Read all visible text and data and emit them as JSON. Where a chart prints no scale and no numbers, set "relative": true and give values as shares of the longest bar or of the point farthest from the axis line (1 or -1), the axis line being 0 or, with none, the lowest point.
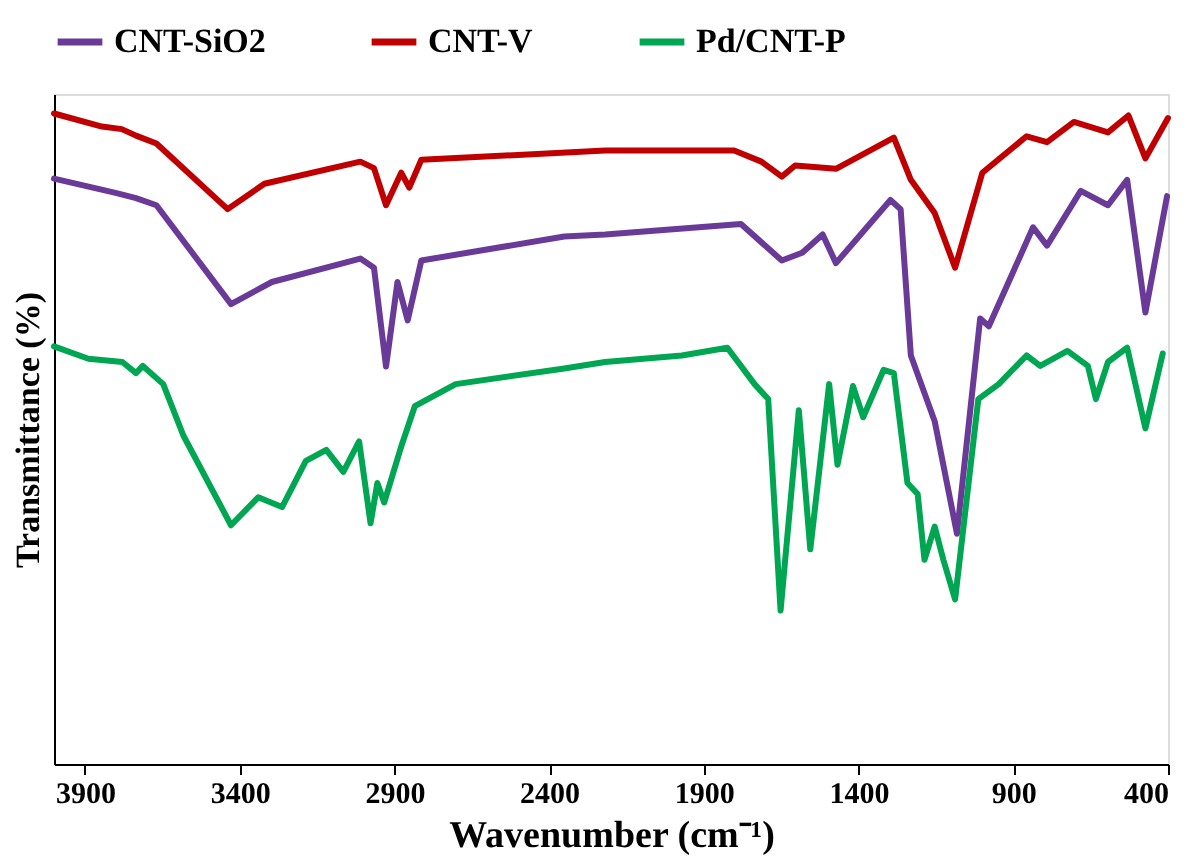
{
  "chart_data": {
    "type": "line",
    "relative": true,
    "xlabel": "Wavenumber (cm⁻¹)",
    "ylabel": "Transmittance (%)",
    "xlim": [
      4000,
      400
    ],
    "xticks": [
      3900,
      3400,
      2900,
      2400,
      1900,
      1400,
      900,
      400
    ],
    "grid": false,
    "legend": "top",
    "tick_labels": "x",
    "marker": "none",
    "line_style": "solid",
    "series": [
      {
        "name": "CNT-SiO2",
        "color": "#6a3a98",
        "x": [
          4000,
          3801,
          3735,
          3669,
          3428,
          3296,
          3010,
          2966,
          2927,
          2890,
          2857,
          2813,
          2351,
          2219,
          1780,
          1648,
          1582,
          1516,
          1473,
          1297,
          1264,
          1231,
          1154,
          1082,
          1007,
          979,
          836,
          791,
          682,
          594,
          532,
          473,
          403
        ],
        "values": [
          0.9,
          0.878,
          0.87,
          0.859,
          0.707,
          0.741,
          0.777,
          0.763,
          0.611,
          0.741,
          0.682,
          0.774,
          0.811,
          0.814,
          0.83,
          0.774,
          0.786,
          0.814,
          0.77,
          0.867,
          0.853,
          0.628,
          0.527,
          0.354,
          0.685,
          0.673,
          0.825,
          0.797,
          0.881,
          0.859,
          0.898,
          0.694,
          0.873
        ]
      },
      {
        "name": "CNT-V",
        "color": "#c00000",
        "x": [
          4000,
          3845,
          3781,
          3735,
          3669,
          3439,
          3320,
          3010,
          2966,
          2927,
          2878,
          2852,
          2813,
          2219,
          1802,
          1714,
          1648,
          1605,
          1473,
          1286,
          1231,
          1154,
          1088,
          1000,
          857,
          791,
          704,
          594,
          528,
          473,
          400
        ],
        "values": [
          1.0,
          0.98,
          0.976,
          0.966,
          0.954,
          0.853,
          0.892,
          0.926,
          0.916,
          0.859,
          0.909,
          0.886,
          0.929,
          0.943,
          0.943,
          0.926,
          0.903,
          0.92,
          0.915,
          0.963,
          0.898,
          0.847,
          0.763,
          0.909,
          0.965,
          0.956,
          0.987,
          0.971,
          0.997,
          0.931,
          0.993
        ]
      },
      {
        "name": "Pd/CNT-P",
        "color": "#00a651",
        "x": [
          4000,
          3889,
          3779,
          3735,
          3713,
          3647,
          3582,
          3428,
          3340,
          3263,
          3186,
          3120,
          3065,
          3014,
          2977,
          2955,
          2933,
          2878,
          2834,
          2702,
          2351,
          2219,
          1971,
          1824,
          1736,
          1692,
          1652,
          1593,
          1556,
          1495,
          1468,
          1418,
          1385,
          1319,
          1286,
          1242,
          1209,
          1187,
          1154,
          1126,
          1088,
          1013,
          947,
          857,
          813,
          725,
          659,
          633,
          594,
          532,
          473,
          417
        ],
        "values": [
          0.642,
          0.623,
          0.618,
          0.601,
          0.612,
          0.584,
          0.505,
          0.367,
          0.41,
          0.395,
          0.466,
          0.483,
          0.449,
          0.496,
          0.37,
          0.432,
          0.402,
          0.488,
          0.55,
          0.584,
          0.608,
          0.618,
          0.628,
          0.64,
          0.584,
          0.561,
          0.236,
          0.544,
          0.33,
          0.584,
          0.46,
          0.581,
          0.533,
          0.606,
          0.601,
          0.432,
          0.415,
          0.314,
          0.365,
          0.314,
          0.253,
          0.561,
          0.584,
          0.628,
          0.612,
          0.635,
          0.612,
          0.561,
          0.618,
          0.64,
          0.516,
          0.631
        ]
      }
    ]
  }
}
